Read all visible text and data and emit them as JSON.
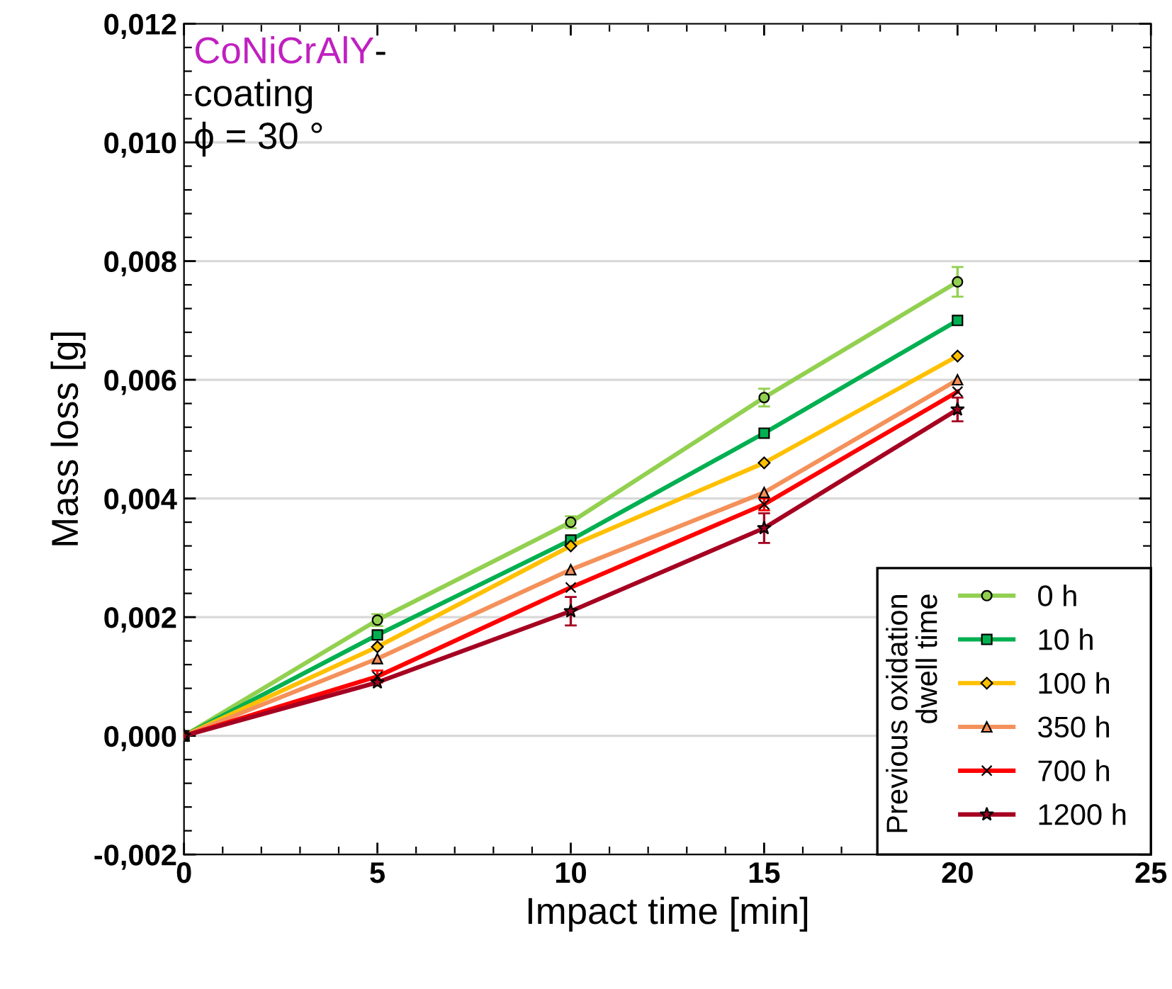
{
  "chart_data": {
    "type": "line",
    "xlabel": "Impact time [min]",
    "ylabel": "Mass loss [g]",
    "legend_title": "Previous oxidation dwell time",
    "annotations": [
      "CoNiCrAlY",
      "-",
      "coating",
      "ϕ = 30 °"
    ],
    "x": [
      0,
      5,
      10,
      15,
      20
    ],
    "xlim": [
      0,
      25
    ],
    "xticks": [
      0,
      5,
      10,
      15,
      20,
      25
    ],
    "ylim": [
      -0.002,
      0.012
    ],
    "yticks": [
      {
        "value": -0.002,
        "label": "-0,002"
      },
      {
        "value": 0,
        "label": "0,000"
      },
      {
        "value": 0.002,
        "label": "0,002"
      },
      {
        "value": 0.004,
        "label": "0,004"
      },
      {
        "value": 0.006,
        "label": "0,006"
      },
      {
        "value": 0.008,
        "label": "0,008"
      },
      {
        "value": 0.01,
        "label": "0,010"
      },
      {
        "value": 0.012,
        "label": "0,012"
      }
    ],
    "grid": "y",
    "legend": "bottom right",
    "line_style": "solid",
    "series": [
      {
        "name": "0 h",
        "color": "#92d050",
        "marker": "circle",
        "values": [
          0,
          0.00195,
          0.0036,
          0.0057,
          0.00765
        ],
        "errors": [
          null,
          0.0001,
          0.0001,
          0.00015,
          0.00025
        ]
      },
      {
        "name": "10 h",
        "color": "#00b050",
        "marker": "square",
        "values": [
          0,
          0.0017,
          0.0033,
          0.0051,
          0.007
        ]
      },
      {
        "name": "100 h",
        "color": "#ffc000",
        "marker": "diamond",
        "values": [
          0,
          0.0015,
          0.0032,
          0.0046,
          0.0064
        ]
      },
      {
        "name": "350 h",
        "color": "#f4915a",
        "marker": "triangle",
        "values": [
          0,
          0.0013,
          0.0028,
          0.0041,
          0.006
        ]
      },
      {
        "name": "700 h",
        "color": "#ff0000",
        "marker": "cross",
        "values": [
          0,
          0.001,
          0.0025,
          0.0039,
          0.0058
        ],
        "errors": [
          null,
          0.0001,
          null,
          0.0001,
          null
        ]
      },
      {
        "name": "1200 h",
        "color": "#a50021",
        "marker": "star",
        "values": [
          0,
          0.0009,
          0.0021,
          0.0035,
          0.0055
        ],
        "errors": [
          null,
          null,
          0.00024,
          0.00025,
          0.0002
        ]
      }
    ]
  }
}
